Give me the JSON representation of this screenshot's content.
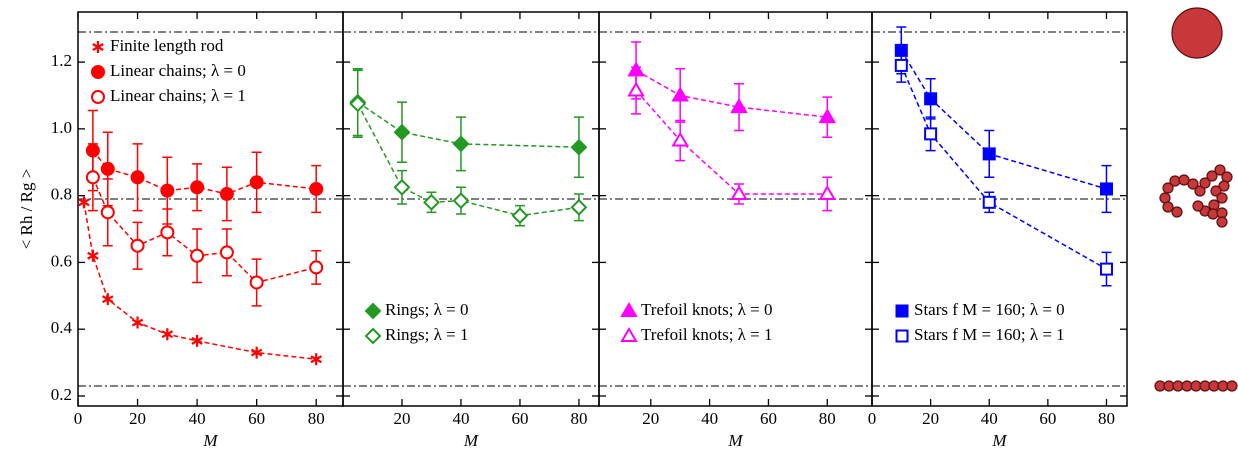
{
  "chart_data": [
    {
      "type": "scatter-line",
      "xlabel": "M",
      "ylabel": "< Rh / Rg >",
      "xlim": [
        0,
        89
      ],
      "ylim": [
        0.17,
        1.35
      ],
      "xticks": [
        0,
        20,
        40,
        60,
        80
      ],
      "yticks": [
        0.2,
        0.4,
        0.6,
        0.8,
        1.0,
        1.2
      ],
      "hlines": [
        1.29,
        0.79,
        0.23
      ],
      "legend": "upper left",
      "series": [
        {
          "name": "Finite length rod",
          "color": "#ff0000",
          "marker": "asterisk",
          "filled": true,
          "x": [
            2,
            5,
            10,
            20,
            30,
            40,
            60,
            80
          ],
          "values": [
            0.78,
            0.62,
            0.49,
            0.42,
            0.385,
            0.365,
            0.33,
            0.31
          ]
        },
        {
          "name": "Linear chains; λ = 0",
          "color": "#ff0000",
          "marker": "circle",
          "filled": true,
          "x": [
            5,
            10,
            20,
            30,
            40,
            50,
            60,
            80
          ],
          "values": [
            0.935,
            0.88,
            0.855,
            0.815,
            0.825,
            0.805,
            0.84,
            0.82
          ],
          "errors": [
            0.12,
            0.11,
            0.1,
            0.1,
            0.07,
            0.08,
            0.09,
            0.07
          ]
        },
        {
          "name": "Linear chains; λ = 1",
          "color": "#ff0000",
          "marker": "circle",
          "filled": false,
          "x": [
            5,
            10,
            20,
            30,
            40,
            50,
            60,
            80
          ],
          "values": [
            0.855,
            0.75,
            0.65,
            0.69,
            0.62,
            0.63,
            0.54,
            0.585
          ],
          "errors": [
            0.1,
            0.1,
            0.07,
            0.07,
            0.08,
            0.07,
            0.07,
            0.05
          ]
        }
      ]
    },
    {
      "type": "scatter-line",
      "xlabel": "M",
      "xlim": [
        0,
        86.8
      ],
      "ylim": [
        0.17,
        1.35
      ],
      "xticks": [
        20,
        40,
        60,
        80
      ],
      "hlines": [
        1.29,
        0.79,
        0.23
      ],
      "legend": "lower left",
      "series": [
        {
          "name": "Rings; λ = 0",
          "color": "#229922",
          "marker": "diamond",
          "filled": true,
          "x": [
            5,
            20,
            40,
            80
          ],
          "values": [
            1.08,
            0.99,
            0.955,
            0.945
          ],
          "errors": [
            0.1,
            0.09,
            0.08,
            0.09
          ]
        },
        {
          "name": "Rings; λ = 1",
          "color": "#229922",
          "marker": "diamond",
          "filled": false,
          "x": [
            5,
            20,
            30,
            40,
            60,
            80
          ],
          "values": [
            1.075,
            0.825,
            0.78,
            0.785,
            0.74,
            0.765
          ],
          "errors": [
            0.1,
            0.05,
            0.03,
            0.04,
            0.03,
            0.04
          ]
        }
      ]
    },
    {
      "type": "scatter-line",
      "xlabel": "M",
      "xlim": [
        2.4,
        95.2
      ],
      "ylim": [
        0.17,
        1.35
      ],
      "xticks": [
        20,
        40,
        60,
        80
      ],
      "hlines": [
        1.29,
        0.79,
        0.23
      ],
      "legend": "lower left",
      "series": [
        {
          "name": "Trefoil knots; λ = 0",
          "color": "#ff00ff",
          "marker": "triangle",
          "filled": true,
          "x": [
            15,
            30,
            50,
            80
          ],
          "values": [
            1.175,
            1.1,
            1.065,
            1.035
          ],
          "errors": [
            0.085,
            0.08,
            0.07,
            0.06
          ]
        },
        {
          "name": "Trefoil knots; λ = 1",
          "color": "#ff00ff",
          "marker": "triangle",
          "filled": false,
          "x": [
            15,
            30,
            50,
            80
          ],
          "values": [
            1.115,
            0.965,
            0.805,
            0.805
          ],
          "errors": [
            0.07,
            0.06,
            0.03,
            0.05
          ]
        }
      ]
    },
    {
      "type": "scatter-line",
      "xlabel": "M",
      "xlim": [
        0,
        87
      ],
      "ylim": [
        0.17,
        1.35
      ],
      "xticks": [
        0,
        20,
        40,
        60,
        80
      ],
      "hlines": [
        1.29,
        0.79,
        0.23
      ],
      "legend": "lower left",
      "series": [
        {
          "name": "Stars f M = 160; λ = 0",
          "color": "#0000ff",
          "marker": "square",
          "filled": true,
          "x": [
            10,
            20,
            40,
            80
          ],
          "values": [
            1.235,
            1.09,
            0.925,
            0.82
          ],
          "errors": [
            0.07,
            0.06,
            0.07,
            0.07
          ]
        },
        {
          "name": "Stars f M = 160; λ = 1",
          "color": "#0000ff",
          "marker": "square",
          "filled": false,
          "x": [
            10,
            20,
            40,
            80
          ],
          "values": [
            1.19,
            0.985,
            0.78,
            0.58
          ],
          "errors": [
            0.05,
            0.05,
            0.03,
            0.05
          ]
        }
      ]
    }
  ]
}
